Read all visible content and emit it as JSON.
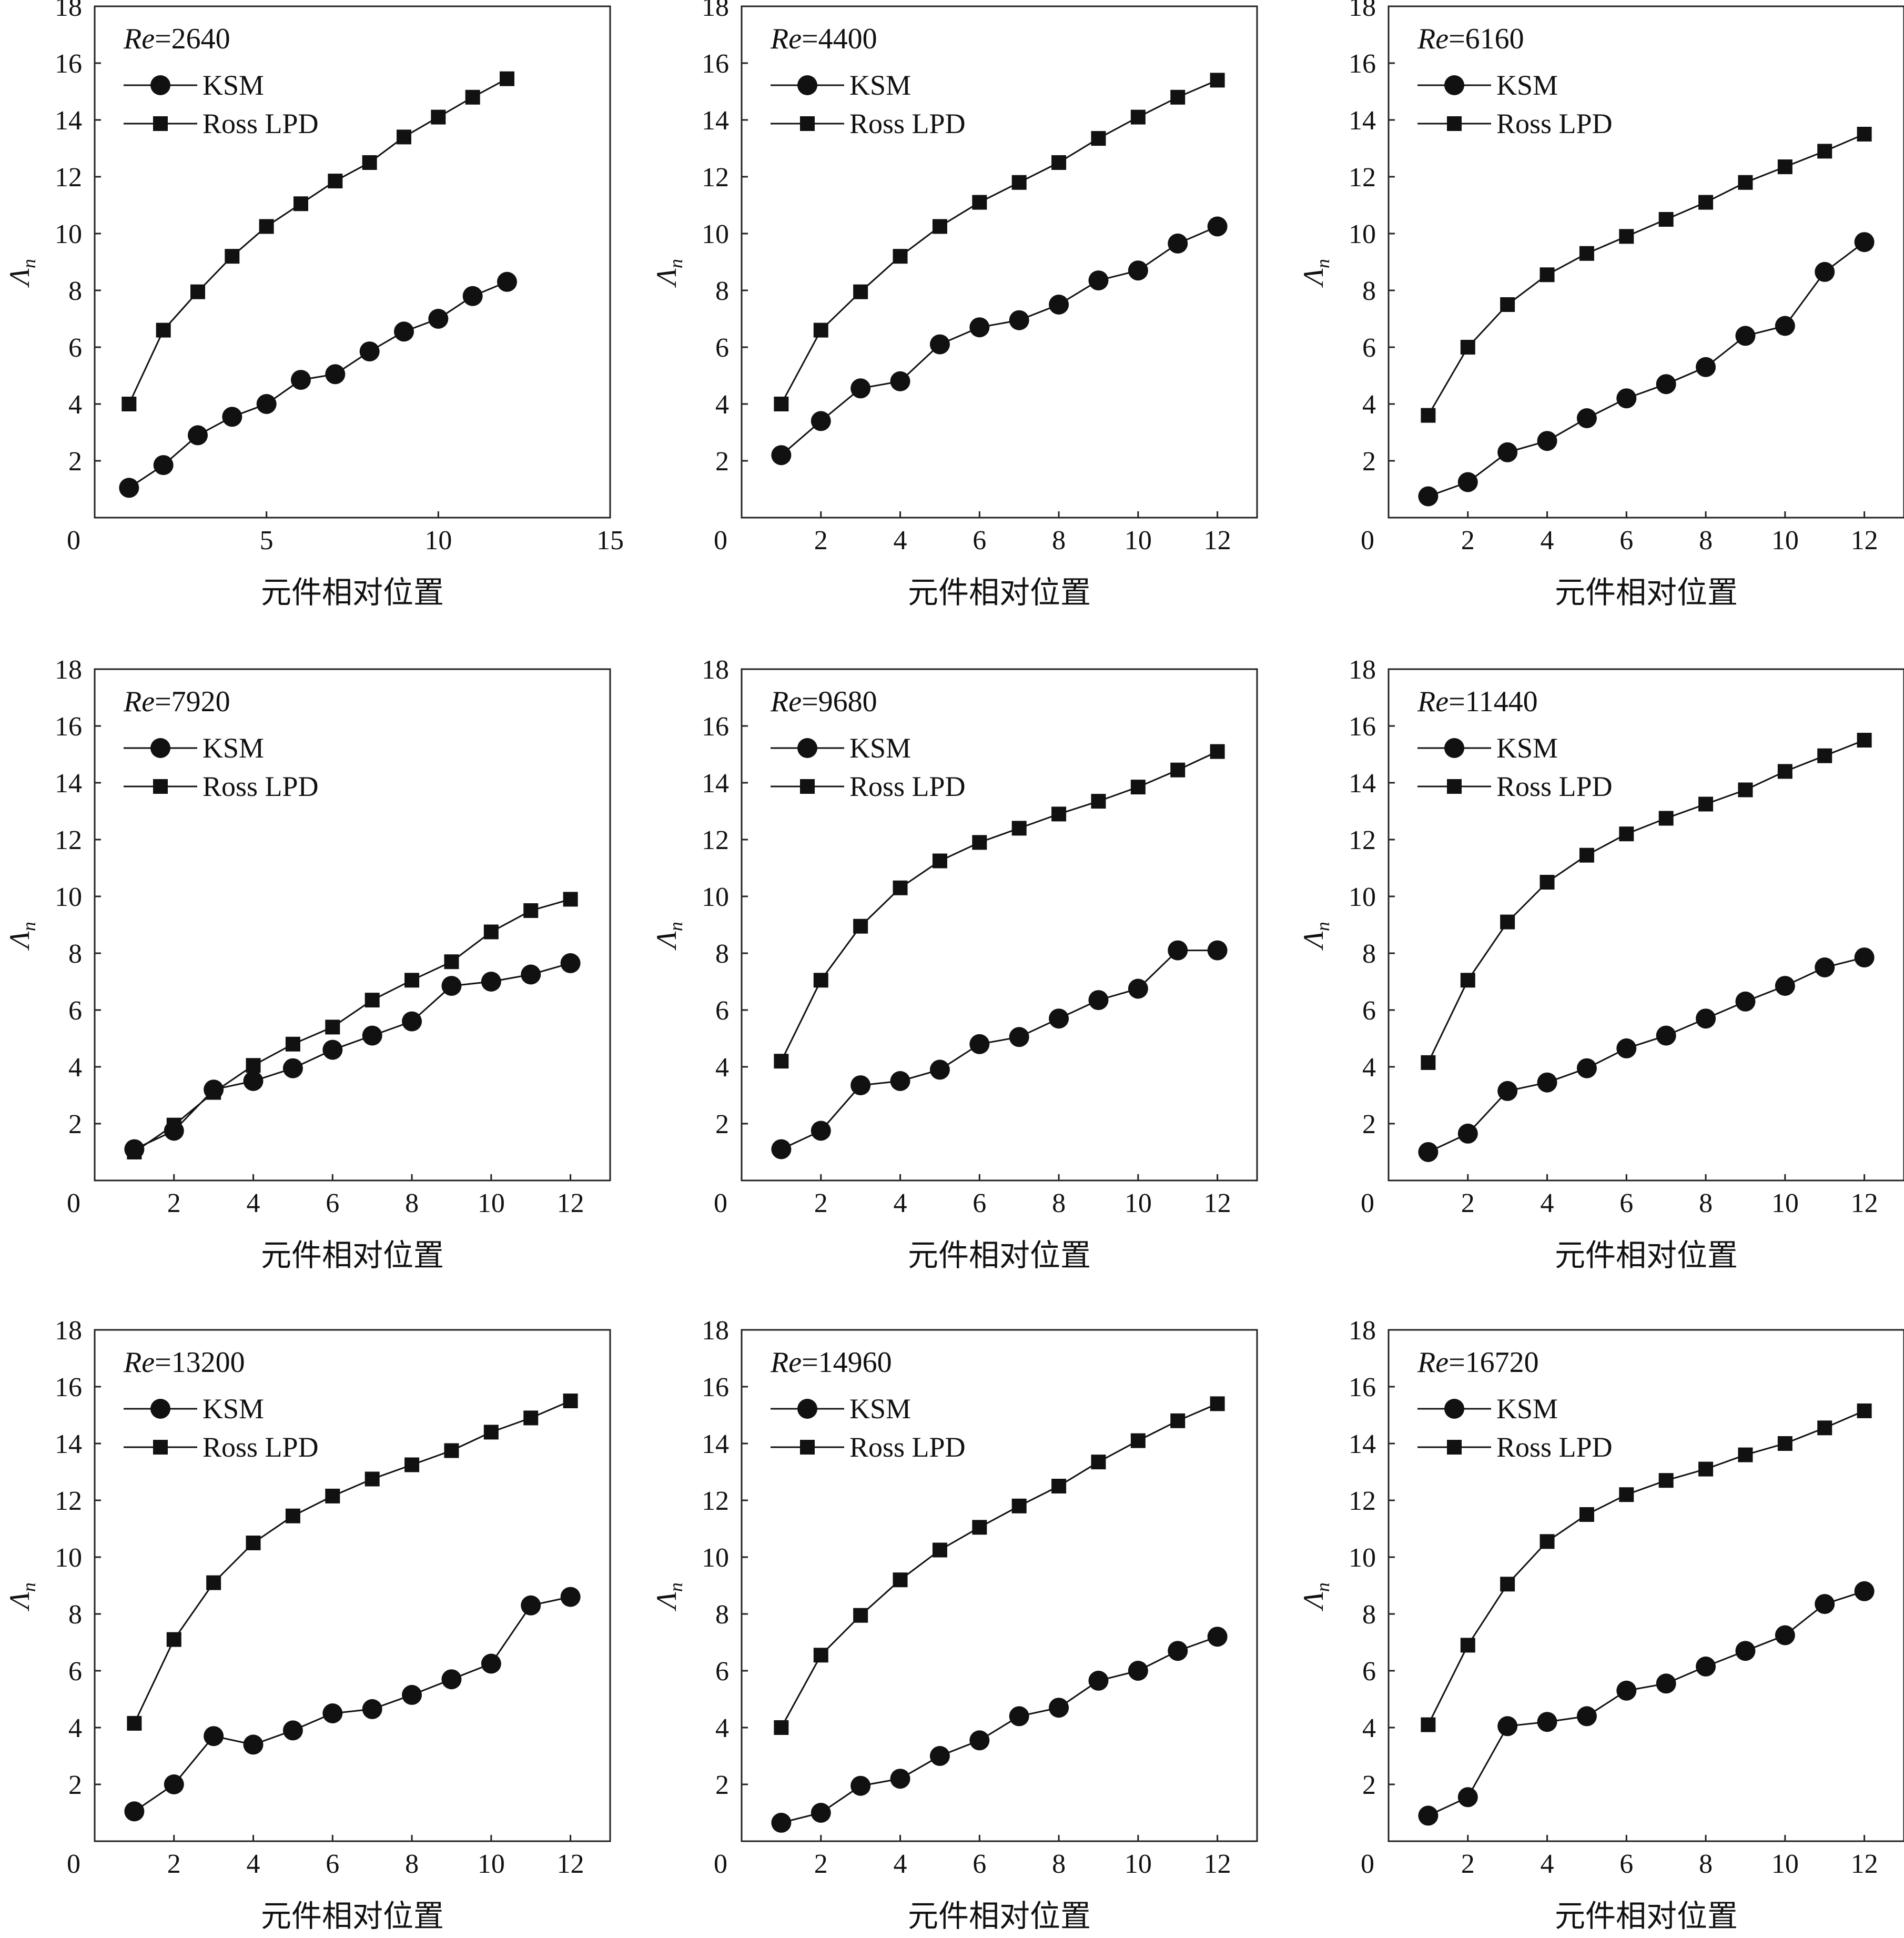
{
  "x_label": "元件相对位置",
  "y_symbol": "Λ",
  "y_subscript": "n",
  "re_prefix": "Re",
  "chart_data": [
    {
      "type": "line",
      "title": "Re=2640",
      "re_value": "2640",
      "xlabel": "元件相对位置",
      "ylabel": "Λn",
      "xlim": [
        0,
        15
      ],
      "ylim": [
        0,
        18
      ],
      "xticks": [
        0,
        5,
        10,
        15
      ],
      "yticks": [
        0,
        2,
        4,
        6,
        8,
        10,
        12,
        14,
        16,
        18
      ],
      "legend": "top-left",
      "series": [
        {
          "name": "KSM",
          "marker": "circle",
          "x": [
            1,
            2,
            3,
            4,
            5,
            6,
            7,
            8,
            9,
            10,
            11,
            12
          ],
          "y": [
            1.05,
            1.85,
            2.9,
            3.55,
            4.0,
            4.85,
            5.05,
            5.85,
            6.55,
            7.0,
            7.8,
            8.3
          ]
        },
        {
          "name": "Ross LPD",
          "marker": "square",
          "x": [
            1,
            2,
            3,
            4,
            5,
            6,
            7,
            8,
            9,
            10,
            11,
            12
          ],
          "y": [
            4.0,
            6.6,
            7.95,
            9.2,
            10.25,
            11.05,
            11.85,
            12.5,
            13.4,
            14.1,
            14.8,
            15.45
          ]
        }
      ]
    },
    {
      "type": "line",
      "title": "Re=4400",
      "re_value": "4400",
      "xlabel": "元件相对位置",
      "ylabel": "Λn",
      "xlim": [
        0,
        13
      ],
      "ylim": [
        0,
        18
      ],
      "xticks": [
        0,
        2,
        4,
        6,
        8,
        10,
        12
      ],
      "yticks": [
        2,
        4,
        6,
        8,
        10,
        12,
        14,
        16,
        18
      ],
      "legend": "top-left",
      "series": [
        {
          "name": "KSM",
          "marker": "circle",
          "x": [
            1,
            2,
            3,
            4,
            5,
            6,
            7,
            8,
            9,
            10,
            11,
            12
          ],
          "y": [
            2.2,
            3.4,
            4.55,
            4.8,
            6.1,
            6.7,
            6.95,
            7.5,
            8.35,
            8.7,
            9.65,
            10.25
          ]
        },
        {
          "name": "Ross LPD",
          "marker": "square",
          "x": [
            1,
            2,
            3,
            4,
            5,
            6,
            7,
            8,
            9,
            10,
            11,
            12
          ],
          "y": [
            4.0,
            6.6,
            7.95,
            9.2,
            10.25,
            11.1,
            11.8,
            12.5,
            13.35,
            14.1,
            14.8,
            15.4
          ]
        }
      ]
    },
    {
      "type": "line",
      "title": "Re=6160",
      "re_value": "6160",
      "xlabel": "元件相对位置",
      "ylabel": "Λn",
      "xlim": [
        0,
        13
      ],
      "ylim": [
        0,
        18
      ],
      "xticks": [
        0,
        2,
        4,
        6,
        8,
        10,
        12
      ],
      "yticks": [
        2,
        4,
        6,
        8,
        10,
        12,
        14,
        16,
        18
      ],
      "legend": "top-left",
      "series": [
        {
          "name": "KSM",
          "marker": "circle",
          "x": [
            1,
            2,
            3,
            4,
            5,
            6,
            7,
            8,
            9,
            10,
            11,
            12
          ],
          "y": [
            0.75,
            1.25,
            2.3,
            2.7,
            3.5,
            4.2,
            4.7,
            5.3,
            6.4,
            6.75,
            8.65,
            9.7
          ]
        },
        {
          "name": "Ross LPD",
          "marker": "square",
          "x": [
            1,
            2,
            3,
            4,
            5,
            6,
            7,
            8,
            9,
            10,
            11,
            12
          ],
          "y": [
            3.6,
            6.0,
            7.5,
            8.55,
            9.3,
            9.9,
            10.5,
            11.1,
            11.8,
            12.35,
            12.9,
            13.5
          ]
        }
      ]
    },
    {
      "type": "line",
      "title": "Re=7920",
      "re_value": "7920",
      "xlabel": "元件相对位置",
      "ylabel": "Λn",
      "xlim": [
        0,
        13
      ],
      "ylim": [
        0,
        18
      ],
      "xticks": [
        0,
        2,
        4,
        6,
        8,
        10,
        12
      ],
      "yticks": [
        2,
        4,
        6,
        8,
        10,
        12,
        14,
        16,
        18
      ],
      "legend": "top-left",
      "series": [
        {
          "name": "KSM",
          "marker": "circle",
          "x": [
            1,
            2,
            3,
            4,
            5,
            6,
            7,
            8,
            9,
            10,
            11,
            12
          ],
          "y": [
            1.1,
            1.75,
            3.2,
            3.5,
            3.95,
            4.6,
            5.1,
            5.6,
            6.85,
            7.0,
            7.25,
            7.65
          ]
        },
        {
          "name": "Ross LPD",
          "marker": "square",
          "x": [
            1,
            2,
            3,
            4,
            5,
            6,
            7,
            8,
            9,
            10,
            11,
            12
          ],
          "y": [
            1.0,
            1.95,
            3.1,
            4.05,
            4.8,
            5.4,
            6.35,
            7.05,
            7.7,
            8.75,
            9.5,
            9.9
          ]
        }
      ]
    },
    {
      "type": "line",
      "title": "Re=9680",
      "re_value": "9680",
      "xlabel": "元件相对位置",
      "ylabel": "Λn",
      "xlim": [
        0,
        13
      ],
      "ylim": [
        0,
        18
      ],
      "xticks": [
        0,
        2,
        4,
        6,
        8,
        10,
        12
      ],
      "yticks": [
        2,
        4,
        6,
        8,
        10,
        12,
        14,
        16,
        18
      ],
      "legend": "top-left",
      "series": [
        {
          "name": "KSM",
          "marker": "circle",
          "x": [
            1,
            2,
            3,
            4,
            5,
            6,
            7,
            8,
            9,
            10,
            11,
            12
          ],
          "y": [
            1.1,
            1.75,
            3.35,
            3.5,
            3.9,
            4.8,
            5.05,
            5.7,
            6.35,
            6.75,
            8.1,
            8.1
          ]
        },
        {
          "name": "Ross LPD",
          "marker": "square",
          "x": [
            1,
            2,
            3,
            4,
            5,
            6,
            7,
            8,
            9,
            10,
            11,
            12
          ],
          "y": [
            4.2,
            7.05,
            8.95,
            10.3,
            11.25,
            11.9,
            12.4,
            12.9,
            13.35,
            13.85,
            14.45,
            15.1
          ]
        }
      ]
    },
    {
      "type": "line",
      "title": "Re=11440",
      "re_value": "11440",
      "xlabel": "元件相对位置",
      "ylabel": "Λn",
      "xlim": [
        0,
        13
      ],
      "ylim": [
        0,
        18
      ],
      "xticks": [
        0,
        2,
        4,
        6,
        8,
        10,
        12
      ],
      "yticks": [
        2,
        4,
        6,
        8,
        10,
        12,
        14,
        16,
        18
      ],
      "legend": "top-left",
      "series": [
        {
          "name": "KSM",
          "marker": "circle",
          "x": [
            1,
            2,
            3,
            4,
            5,
            6,
            7,
            8,
            9,
            10,
            11,
            12
          ],
          "y": [
            1.0,
            1.65,
            3.15,
            3.45,
            3.95,
            4.65,
            5.1,
            5.7,
            6.3,
            6.85,
            7.5,
            7.85
          ]
        },
        {
          "name": "Ross LPD",
          "marker": "square",
          "x": [
            1,
            2,
            3,
            4,
            5,
            6,
            7,
            8,
            9,
            10,
            11,
            12
          ],
          "y": [
            4.15,
            7.05,
            9.1,
            10.5,
            11.45,
            12.2,
            12.75,
            13.25,
            13.75,
            14.4,
            14.95,
            15.5
          ]
        }
      ]
    },
    {
      "type": "line",
      "title": "Re=13200",
      "re_value": "13200",
      "xlabel": "元件相对位置",
      "ylabel": "Λn",
      "xlim": [
        0,
        13
      ],
      "ylim": [
        0,
        18
      ],
      "xticks": [
        0,
        2,
        4,
        6,
        8,
        10,
        12
      ],
      "yticks": [
        2,
        4,
        6,
        8,
        10,
        12,
        14,
        16,
        18
      ],
      "legend": "top-left",
      "series": [
        {
          "name": "KSM",
          "marker": "circle",
          "x": [
            1,
            2,
            3,
            4,
            5,
            6,
            7,
            8,
            9,
            10,
            11,
            12
          ],
          "y": [
            1.05,
            2.0,
            3.7,
            3.4,
            3.9,
            4.5,
            4.65,
            5.15,
            5.7,
            6.25,
            8.3,
            8.6
          ]
        },
        {
          "name": "Ross LPD",
          "marker": "square",
          "x": [
            1,
            2,
            3,
            4,
            5,
            6,
            7,
            8,
            9,
            10,
            11,
            12
          ],
          "y": [
            4.15,
            7.1,
            9.1,
            10.5,
            11.45,
            12.15,
            12.75,
            13.25,
            13.75,
            14.4,
            14.9,
            15.5
          ]
        }
      ]
    },
    {
      "type": "line",
      "title": "Re=14960",
      "re_value": "14960",
      "xlabel": "元件相对位置",
      "ylabel": "Λn",
      "xlim": [
        0,
        13
      ],
      "ylim": [
        0,
        18
      ],
      "xticks": [
        0,
        2,
        4,
        6,
        8,
        10,
        12
      ],
      "yticks": [
        2,
        4,
        6,
        8,
        10,
        12,
        14,
        16,
        18
      ],
      "legend": "top-left",
      "series": [
        {
          "name": "KSM",
          "marker": "circle",
          "x": [
            1,
            2,
            3,
            4,
            5,
            6,
            7,
            8,
            9,
            10,
            11,
            12
          ],
          "y": [
            0.65,
            1.0,
            1.95,
            2.2,
            3.0,
            3.55,
            4.4,
            4.7,
            5.65,
            6.0,
            6.7,
            7.2
          ]
        },
        {
          "name": "Ross LPD",
          "marker": "square",
          "x": [
            1,
            2,
            3,
            4,
            5,
            6,
            7,
            8,
            9,
            10,
            11,
            12
          ],
          "y": [
            4.0,
            6.55,
            7.95,
            9.2,
            10.25,
            11.05,
            11.8,
            12.5,
            13.35,
            14.1,
            14.8,
            15.4
          ]
        }
      ]
    },
    {
      "type": "line",
      "title": "Re=16720",
      "re_value": "16720",
      "xlabel": "元件相对位置",
      "ylabel": "Λn",
      "xlim": [
        0,
        13
      ],
      "ylim": [
        0,
        18
      ],
      "xticks": [
        0,
        2,
        4,
        6,
        8,
        10,
        12
      ],
      "yticks": [
        2,
        4,
        6,
        8,
        10,
        12,
        14,
        16,
        18
      ],
      "legend": "top-left",
      "series": [
        {
          "name": "KSM",
          "marker": "circle",
          "x": [
            1,
            2,
            3,
            4,
            5,
            6,
            7,
            8,
            9,
            10,
            11,
            12
          ],
          "y": [
            0.9,
            1.55,
            4.05,
            4.2,
            4.4,
            5.3,
            5.55,
            6.15,
            6.7,
            7.25,
            8.35,
            8.8
          ]
        },
        {
          "name": "Ross LPD",
          "marker": "square",
          "x": [
            1,
            2,
            3,
            4,
            5,
            6,
            7,
            8,
            9,
            10,
            11,
            12
          ],
          "y": [
            4.1,
            6.9,
            9.05,
            10.55,
            11.5,
            12.2,
            12.7,
            13.1,
            13.6,
            14.0,
            14.55,
            15.15
          ]
        }
      ]
    }
  ]
}
